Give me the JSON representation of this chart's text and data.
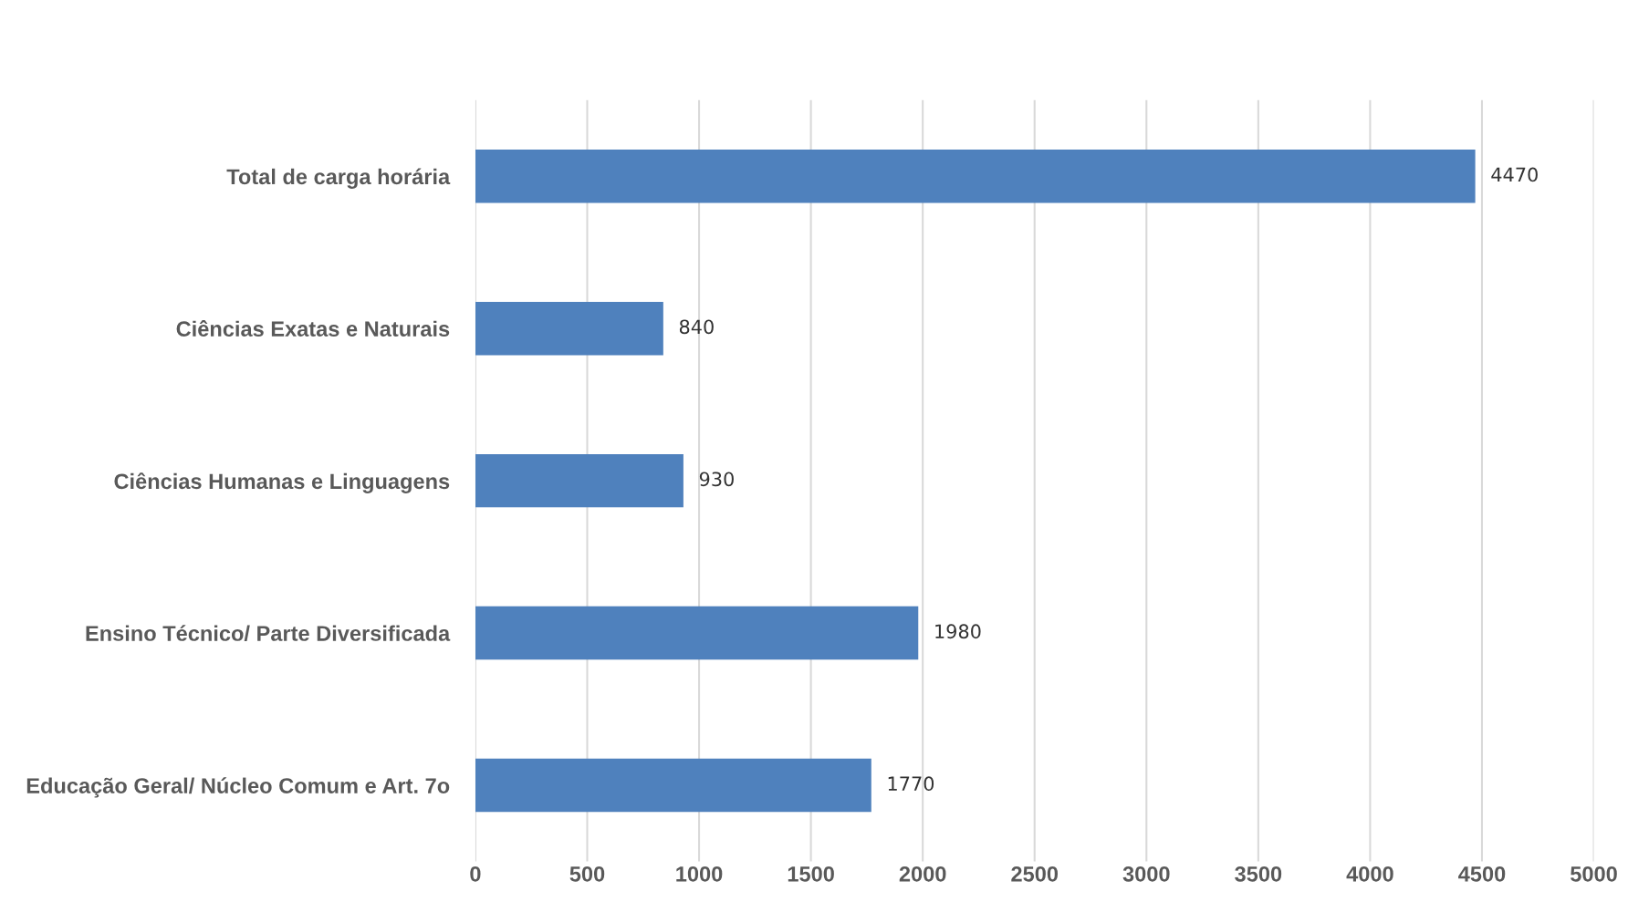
{
  "chart_data": {
    "type": "bar",
    "orientation": "horizontal",
    "categories": [
      "Total de carga horária",
      "Ciências Exatas e Naturais",
      "Ciências Humanas e Linguagens",
      "Ensino Técnico/ Parte Diversificada",
      "Educação Geral/ Núcleo Comum e Art. 7o"
    ],
    "values": [
      4470,
      840,
      930,
      1980,
      1770
    ],
    "color": "#4f81bd",
    "xlim": [
      0,
      5000
    ],
    "xticks": [
      0,
      500,
      1000,
      1500,
      2000,
      2500,
      3000,
      3500,
      4000,
      4500,
      5000
    ],
    "grid": "x",
    "data_labels": true
  }
}
